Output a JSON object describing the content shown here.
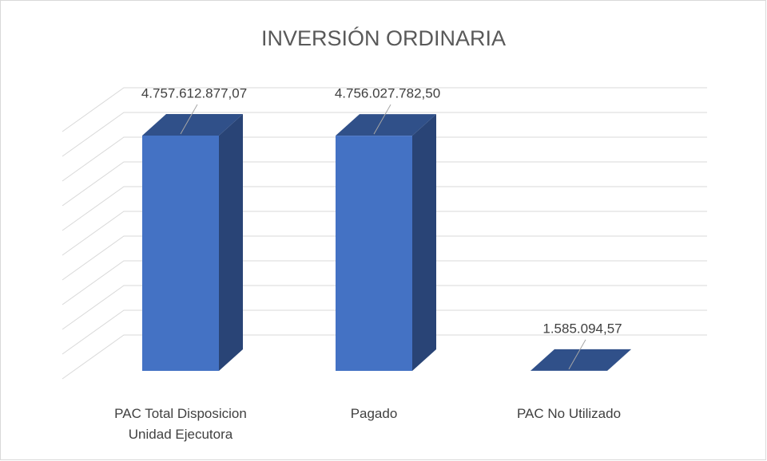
{
  "chart_data": {
    "type": "bar3d",
    "title": "INVERSIÓN ORDINARIA",
    "categories": [
      "PAC Total Disposicion Unidad Ejecutora",
      "Pagado",
      "PAC No Utilizado"
    ],
    "values": [
      4757612877.07,
      4756027782.5,
      1585094.57
    ],
    "value_labels": [
      "4.757.612.877,07",
      "4.756.027.782,50",
      "1.585.094,57"
    ],
    "color": "#4472c4",
    "ylim": [
      0,
      5000000000
    ],
    "yticks": [
      0,
      500000000,
      1000000000,
      1500000000,
      2000000000,
      2500000000,
      3000000000,
      3500000000,
      4000000000,
      4500000000,
      5000000000
    ],
    "grid": true
  }
}
